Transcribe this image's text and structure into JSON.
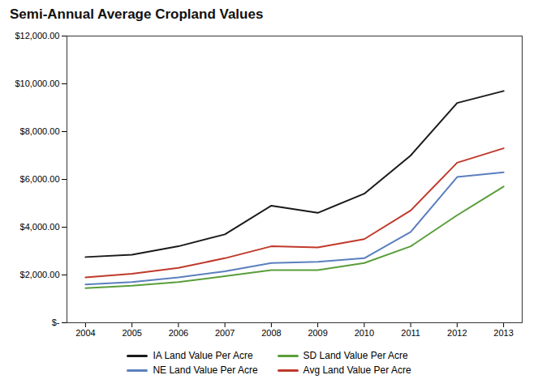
{
  "chart_data": {
    "type": "line",
    "title": "Semi-Annual Average Cropland Values",
    "x": [
      2004,
      2005,
      2006,
      2007,
      2008,
      2009,
      2010,
      2011,
      2012,
      2013
    ],
    "series": [
      {
        "name": "IA Land Value Per Acre",
        "color": "#1a1a1a",
        "values": [
          2750,
          2850,
          3200,
          3700,
          4900,
          4600,
          5400,
          7000,
          9200,
          9700
        ]
      },
      {
        "name": "SD Land Value Per Acre",
        "color": "#5a9e3a",
        "values": [
          1450,
          1550,
          1700,
          1950,
          2200,
          2200,
          2500,
          3200,
          4500,
          5700
        ]
      },
      {
        "name": "NE Land Value Per Acre",
        "color": "#5b7fbe",
        "values": [
          1600,
          1700,
          1900,
          2150,
          2500,
          2550,
          2700,
          3800,
          6100,
          6300
        ]
      },
      {
        "name": "Avg Land Value Per Acre",
        "color": "#c0392b",
        "values": [
          1900,
          2050,
          2300,
          2700,
          3200,
          3150,
          3500,
          4700,
          6700,
          7300
        ]
      }
    ],
    "xlim": [
      2003.6,
      2013.4
    ],
    "xticks": [
      2004,
      2005,
      2006,
      2007,
      2008,
      2009,
      2010,
      2011,
      2012,
      2013
    ],
    "ylim": [
      0,
      12000
    ],
    "yticks": [
      {
        "value": 0,
        "label": "$-"
      },
      {
        "value": 2000,
        "label": "$2,000.00"
      },
      {
        "value": 4000,
        "label": "$4,000.00"
      },
      {
        "value": 6000,
        "label": "$6,000.00"
      },
      {
        "value": 8000,
        "label": "$8,000.00"
      },
      {
        "value": 10000,
        "label": "$10,000.00"
      },
      {
        "value": 12000,
        "label": "$12,000.00"
      }
    ],
    "grid": false,
    "legend": "bottom"
  }
}
